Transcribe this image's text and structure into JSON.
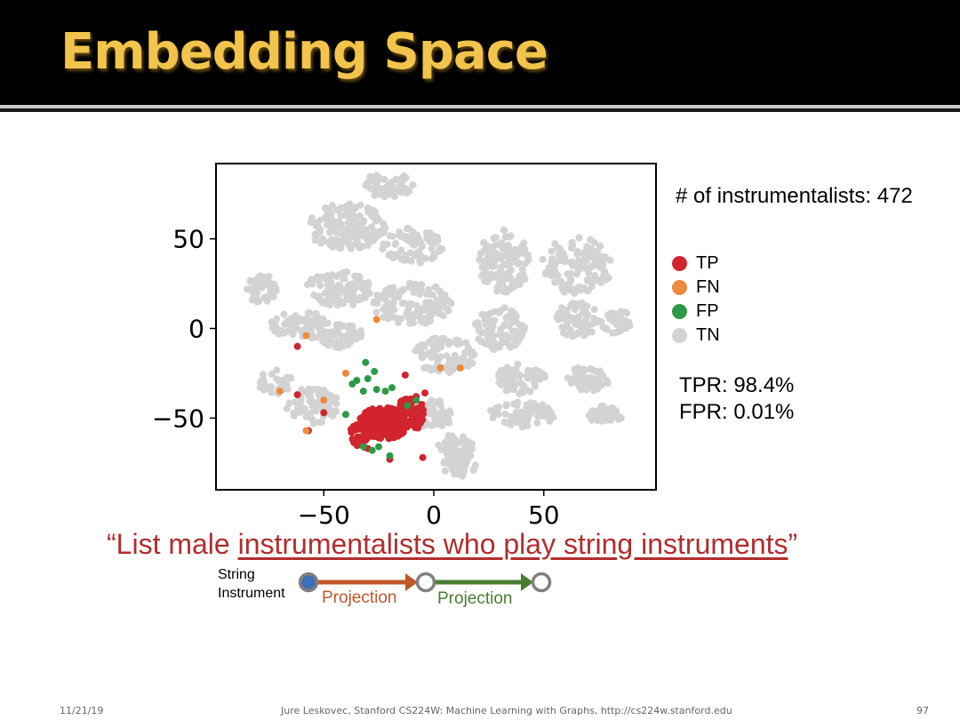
{
  "slide": {
    "title": "Embedding Space",
    "footer": {
      "date": "11/21/19",
      "credit": "Jure Leskovec, Stanford CS224W: Machine Learning with Graphs, http://cs224w.stanford.edu",
      "page": "97"
    }
  },
  "annotations": {
    "count": "# of instrumentalists: 472",
    "tpr": "TPR: 98.4%",
    "fpr": "FPR: 0.01%"
  },
  "legend": [
    {
      "label": "TP",
      "color": "#d1242f"
    },
    {
      "label": "FN",
      "color": "#ee8a3c"
    },
    {
      "label": "FP",
      "color": "#2e9a46"
    },
    {
      "label": "TN",
      "color": "#d3d3d3"
    }
  ],
  "quote": {
    "open": "“List male ",
    "underlined": "instrumentalists who play string instruments",
    "close": "”"
  },
  "chain": {
    "start_line1": "String",
    "start_line2": "Instrument",
    "edge1": "Projection",
    "edge2": "Projection",
    "edge1_color": "#c0582a",
    "edge2_color": "#4a7d33",
    "start_color": "#3b6fb6"
  },
  "chart_data": {
    "type": "scatter",
    "title": "",
    "xlabel": "",
    "ylabel": "",
    "xlim": [
      -99,
      101
    ],
    "ylim": [
      -90,
      92
    ],
    "xticks": [
      "−50",
      "0",
      "50"
    ],
    "yticks": [
      "50",
      "0",
      "−50"
    ],
    "grid": false,
    "legend_position": "right",
    "series": [
      {
        "name": "TN",
        "color": "#d3d3d3",
        "clusters": [
          {
            "cx": -21,
            "cy": 80,
            "rx": 12,
            "ry": 7,
            "n": 60
          },
          {
            "cx": -40,
            "cy": 57,
            "rx": 18,
            "ry": 13,
            "n": 140
          },
          {
            "cx": 32,
            "cy": 38,
            "rx": 12,
            "ry": 18,
            "n": 120
          },
          {
            "cx": 65,
            "cy": 35,
            "rx": 16,
            "ry": 16,
            "n": 130
          },
          {
            "cx": -43,
            "cy": 22,
            "rx": 15,
            "ry": 10,
            "n": 100
          },
          {
            "cx": -10,
            "cy": 14,
            "rx": 18,
            "ry": 12,
            "n": 120
          },
          {
            "cx": -10,
            "cy": 46,
            "rx": 14,
            "ry": 10,
            "n": 80
          },
          {
            "cx": -78,
            "cy": 22,
            "rx": 7,
            "ry": 8,
            "n": 45
          },
          {
            "cx": 30,
            "cy": 0,
            "rx": 12,
            "ry": 12,
            "n": 90
          },
          {
            "cx": 65,
            "cy": 5,
            "rx": 10,
            "ry": 10,
            "n": 70
          },
          {
            "cx": 83,
            "cy": 4,
            "rx": 7,
            "ry": 7,
            "n": 40
          },
          {
            "cx": -60,
            "cy": 2,
            "rx": 14,
            "ry": 8,
            "n": 80
          },
          {
            "cx": -42,
            "cy": -5,
            "rx": 10,
            "ry": 8,
            "n": 60
          },
          {
            "cx": 5,
            "cy": -15,
            "rx": 14,
            "ry": 10,
            "n": 90
          },
          {
            "cx": 40,
            "cy": -28,
            "rx": 11,
            "ry": 9,
            "n": 70
          },
          {
            "cx": 70,
            "cy": -28,
            "rx": 10,
            "ry": 7,
            "n": 55
          },
          {
            "cx": 78,
            "cy": -48,
            "rx": 8,
            "ry": 5,
            "n": 40
          },
          {
            "cx": 40,
            "cy": -48,
            "rx": 15,
            "ry": 7,
            "n": 70
          },
          {
            "cx": 10,
            "cy": -65,
            "rx": 8,
            "ry": 6,
            "n": 40
          },
          {
            "cx": 12,
            "cy": -76,
            "rx": 8,
            "ry": 7,
            "n": 45
          },
          {
            "cx": 0,
            "cy": -48,
            "rx": 10,
            "ry": 8,
            "n": 50
          },
          {
            "cx": -55,
            "cy": -43,
            "rx": 12,
            "ry": 10,
            "n": 70
          },
          {
            "cx": -72,
            "cy": -30,
            "rx": 8,
            "ry": 7,
            "n": 35
          }
        ]
      },
      {
        "name": "TP",
        "color": "#d1242f",
        "clusters": [
          {
            "cx": -23,
            "cy": -53,
            "rx": 11,
            "ry": 9,
            "n": 220
          },
          {
            "cx": -11,
            "cy": -48,
            "rx": 7,
            "ry": 9,
            "n": 70
          },
          {
            "cx": -33,
            "cy": -60,
            "rx": 6,
            "ry": 7,
            "n": 40
          }
        ],
        "points": [
          [
            -62,
            -10
          ],
          [
            -62,
            -37
          ],
          [
            -57,
            -57
          ],
          [
            -50,
            -47
          ],
          [
            -30,
            -67
          ],
          [
            -20,
            -73
          ],
          [
            -5,
            -72
          ],
          [
            -4,
            -36
          ],
          [
            -8,
            -38
          ],
          [
            -13,
            -26
          ]
        ]
      },
      {
        "name": "FN",
        "color": "#ee8a3c",
        "points": [
          [
            -58,
            -4
          ],
          [
            -70,
            -35
          ],
          [
            -58,
            -57
          ],
          [
            -50,
            -40
          ],
          [
            -40,
            -25
          ],
          [
            -26,
            5
          ],
          [
            3,
            -22
          ],
          [
            12,
            -22
          ]
        ]
      },
      {
        "name": "FP",
        "color": "#2e9a46",
        "points": [
          [
            -31,
            -19
          ],
          [
            -37,
            -31
          ],
          [
            -27,
            -24
          ],
          [
            -35,
            -29
          ],
          [
            -32,
            -35
          ],
          [
            -26,
            -34
          ],
          [
            -22,
            -35
          ],
          [
            -30,
            -28
          ],
          [
            -19,
            -33
          ],
          [
            -40,
            -48
          ],
          [
            -28,
            -68
          ],
          [
            -32,
            -66
          ],
          [
            -25,
            -66
          ],
          [
            -20,
            -71
          ],
          [
            -12,
            -43
          ],
          [
            -8,
            -40
          ]
        ]
      }
    ]
  }
}
